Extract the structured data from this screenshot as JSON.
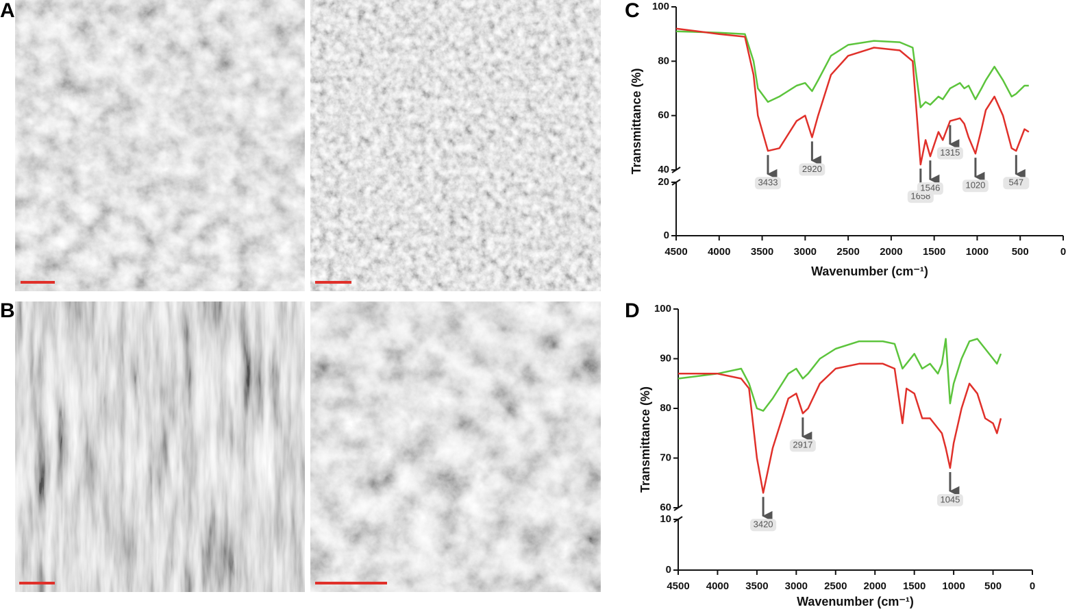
{
  "panel_labels": [
    "A",
    "B",
    "C",
    "D"
  ],
  "chart_data": [
    {
      "type": "line",
      "xlabel": "Wavenumber (cm⁻¹)",
      "ylabel": "Transmittance (%)",
      "xlim": [
        4500,
        0
      ],
      "xticks": [
        4500,
        4000,
        3500,
        3000,
        2500,
        2000,
        1500,
        1000,
        500,
        0
      ],
      "ylim": [
        0,
        100
      ],
      "yticks": [
        0,
        20,
        40,
        60,
        80,
        100
      ],
      "y_break": [
        20,
        40
      ],
      "grid": false,
      "x": [
        4500,
        4000,
        3700,
        3600,
        3550,
        3433,
        3300,
        3100,
        3000,
        2920,
        2850,
        2700,
        2500,
        2200,
        1900,
        1750,
        1658,
        1600,
        1546,
        1450,
        1400,
        1315,
        1200,
        1150,
        1100,
        1020,
        950,
        900,
        800,
        700,
        600,
        547,
        450,
        400
      ],
      "series": [
        {
          "color": "#e0302a",
          "values": [
            92,
            90,
            89,
            75,
            60,
            47,
            48,
            58,
            60,
            52,
            60,
            75,
            82,
            85,
            84,
            80,
            42,
            51,
            45,
            54,
            51,
            58,
            59,
            57,
            52,
            46,
            55,
            62,
            67,
            60,
            48,
            47,
            55,
            54
          ]
        },
        {
          "color": "#5cc43c",
          "values": [
            91,
            90.5,
            90,
            80,
            70,
            65,
            67,
            71,
            72,
            69,
            73,
            82,
            86,
            87.5,
            87,
            85,
            63,
            65,
            64,
            67,
            66,
            70,
            72,
            70,
            71,
            66,
            70,
            73,
            78,
            73,
            67,
            68,
            71,
            71
          ]
        }
      ],
      "annotations": [
        3433,
        2920,
        1658,
        1546,
        1315,
        1020,
        547
      ]
    },
    {
      "type": "line",
      "xlabel": "Wavenumber (cm⁻¹)",
      "ylabel": "Transmittance (%)",
      "xlim": [
        4500,
        0
      ],
      "xticks": [
        4500,
        4000,
        3500,
        3000,
        2500,
        2000,
        1500,
        1000,
        500,
        0
      ],
      "ylim": [
        0,
        100
      ],
      "yticks": [
        0,
        10,
        60,
        70,
        80,
        90,
        100
      ],
      "y_break": [
        10,
        60
      ],
      "grid": false,
      "x": [
        4500,
        4000,
        3700,
        3600,
        3500,
        3420,
        3300,
        3100,
        3000,
        2917,
        2850,
        2700,
        2500,
        2200,
        1900,
        1750,
        1650,
        1600,
        1500,
        1400,
        1300,
        1200,
        1150,
        1100,
        1045,
        1000,
        900,
        800,
        700,
        600,
        500,
        450,
        400
      ],
      "series": [
        {
          "color": "#e0302a",
          "values": [
            87,
            87,
            86,
            84,
            70,
            63,
            72,
            82,
            83,
            79,
            80,
            85,
            88,
            89,
            89,
            88,
            77,
            84,
            83,
            78,
            78,
            76,
            75,
            72,
            68,
            73,
            80,
            85,
            83,
            78,
            77,
            75,
            78
          ]
        },
        {
          "color": "#5cc43c",
          "values": [
            86,
            87,
            88,
            85,
            80,
            79.5,
            82,
            87,
            88,
            86,
            87,
            90,
            92,
            93.5,
            93.5,
            93,
            88,
            89,
            91,
            88,
            89,
            87,
            89,
            94,
            81,
            85,
            90,
            93.5,
            94,
            92,
            90,
            89,
            91
          ]
        }
      ],
      "annotations": [
        3420,
        2917,
        1045
      ]
    }
  ]
}
